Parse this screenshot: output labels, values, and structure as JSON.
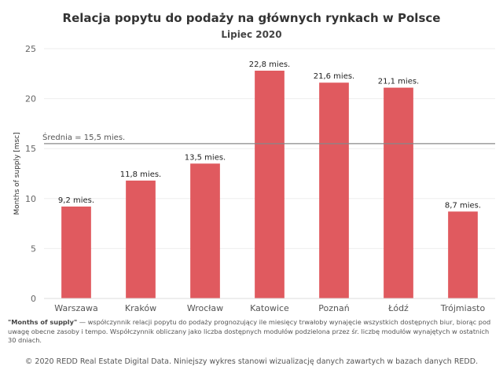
{
  "chart_data": {
    "type": "bar",
    "title": "Relacja popytu do podaży na głównych rynkach w Polsce",
    "subtitle": "Lipiec 2020",
    "ylabel": "Months of supply [msc]",
    "xlabel": "",
    "ylim": [
      0,
      25
    ],
    "yticks": [
      "0",
      "5",
      "10",
      "15",
      "20",
      "25"
    ],
    "categories": [
      "Warszawa",
      "Kraków",
      "Wrocław",
      "Katowice",
      "Poznań",
      "Łódź",
      "Trójmiasto"
    ],
    "values": [
      9.2,
      11.8,
      13.5,
      22.8,
      21.6,
      21.1,
      8.7
    ],
    "data_labels": [
      "9,2 mies.",
      "11,8 mies.",
      "13,5 mies.",
      "22,8 mies.",
      "21,6 mies.",
      "21,1 mies.",
      "8,7 mies."
    ],
    "average": {
      "value": 15.5,
      "label": "Średnia = 15,5 mies."
    },
    "bar_color": "#e05a5f",
    "grid": true,
    "legend": "none"
  },
  "footnote": {
    "term": "\"Months of supply\"",
    "text": " — współczynnik relacji popytu do podaży prognozujący ile miesięcy trwałoby wynajęcie wszystkich dostępnych biur, biorąc pod uwagę obecne zasoby i tempo. Współczynnik obliczany jako liczba dostępnych modułów podzielona przez śr. liczbę modułów wynajętych w ostatnich 30 dniach."
  },
  "copyright": "© 2020 REDD Real Estate Digital Data. Niniejszy wykres stanowi wizualizację danych zawartych w bazach danych REDD."
}
